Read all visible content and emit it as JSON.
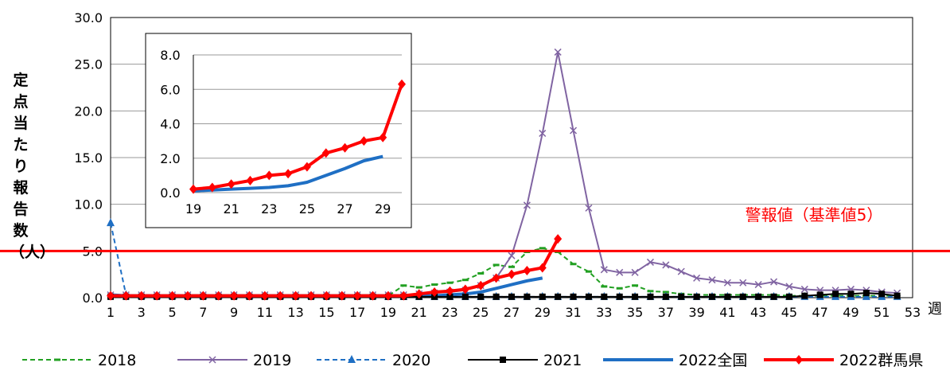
{
  "chart_data": {
    "type": "line",
    "ylabel": "定点当たり報告数（人）",
    "xunit": "週",
    "ylim": [
      0,
      30
    ],
    "xlim": [
      1,
      53
    ],
    "yticks": [
      "0.0",
      "5.0",
      "10.0",
      "15.0",
      "20.0",
      "25.0",
      "30.0"
    ],
    "xticks": [
      1,
      3,
      5,
      7,
      9,
      11,
      13,
      15,
      17,
      19,
      21,
      23,
      25,
      27,
      29,
      31,
      33,
      35,
      37,
      39,
      41,
      43,
      45,
      47,
      49,
      51,
      53
    ],
    "grid": true,
    "legend_position": "bottom",
    "alert_line": {
      "value": 5,
      "label": "警報値（基準値5）",
      "color": "#ff0000"
    },
    "series": [
      {
        "name": "2018",
        "color": "#22a022",
        "style": "dashed",
        "marker": "dash",
        "values": [
          0.2,
          0.2,
          0.2,
          0.2,
          0.2,
          0.2,
          0.2,
          0.2,
          0.2,
          0.2,
          0.2,
          0.2,
          0.2,
          0.2,
          0.2,
          0.2,
          0.2,
          0.2,
          0.2,
          1.3,
          1.1,
          1.4,
          1.6,
          1.9,
          2.6,
          3.5,
          3.3,
          4.9,
          5.3,
          4.9,
          3.6,
          2.8,
          1.2,
          1.0,
          1.3,
          0.7,
          0.6,
          0.4,
          0.3,
          0.3,
          0.3,
          0.3,
          0.3,
          0.3,
          0.2,
          0.2,
          0.2,
          0.2,
          0.2,
          0.2,
          0.2,
          0.2
        ]
      },
      {
        "name": "2019",
        "color": "#8064a2",
        "style": "solid",
        "marker": "x",
        "values": [
          0.3,
          0.3,
          0.3,
          0.3,
          0.3,
          0.3,
          0.3,
          0.3,
          0.3,
          0.3,
          0.3,
          0.3,
          0.3,
          0.3,
          0.3,
          0.3,
          0.3,
          0.3,
          0.3,
          0.3,
          0.4,
          0.5,
          0.6,
          0.8,
          1.3,
          2.1,
          4.5,
          9.9,
          17.6,
          26.3,
          17.9,
          9.6,
          3.0,
          2.7,
          2.7,
          3.8,
          3.5,
          2.8,
          2.1,
          1.9,
          1.6,
          1.6,
          1.4,
          1.7,
          1.2,
          0.9,
          0.8,
          0.8,
          0.9,
          0.8,
          0.6,
          0.5
        ]
      },
      {
        "name": "2020",
        "color": "#1f6fc4",
        "style": "dashed",
        "marker": "triangle",
        "values": [
          8.0,
          0.3,
          0.2,
          0.2,
          0.2,
          0.2,
          0.2,
          0.2,
          0.2,
          0.2,
          0.2,
          0.2,
          0.2,
          0.2,
          0.2,
          0.2,
          0.2,
          0.2,
          0.1,
          0.1,
          0.1,
          0.1,
          0.1,
          0.1,
          0.1,
          0.1,
          0.1,
          0.1,
          0.1,
          0.1,
          0.1,
          0.1,
          0.1,
          0.1,
          0.1,
          0.1,
          0.1,
          0.1,
          0.1,
          0.1,
          0.1,
          0.1,
          0.1,
          0.1,
          0.1,
          0.1,
          0.1,
          0.1,
          0.1,
          0.1,
          0.1,
          0.1
        ]
      },
      {
        "name": "2021",
        "color": "#000000",
        "style": "solid",
        "marker": "square",
        "values": [
          0.1,
          0.1,
          0.1,
          0.1,
          0.1,
          0.1,
          0.1,
          0.1,
          0.1,
          0.1,
          0.1,
          0.1,
          0.1,
          0.1,
          0.1,
          0.1,
          0.1,
          0.1,
          0.1,
          0.1,
          0.1,
          0.1,
          0.1,
          0.1,
          0.1,
          0.1,
          0.1,
          0.1,
          0.1,
          0.1,
          0.1,
          0.1,
          0.1,
          0.1,
          0.1,
          0.1,
          0.1,
          0.1,
          0.1,
          0.1,
          0.1,
          0.1,
          0.1,
          0.1,
          0.1,
          0.2,
          0.3,
          0.4,
          0.4,
          0.5,
          0.4,
          0.2
        ]
      },
      {
        "name": "2022全国",
        "color": "#1f6fc4",
        "style": "solid-thick",
        "marker": "none",
        "values": [
          0.3,
          0.2,
          0.2,
          0.2,
          0.2,
          0.2,
          0.2,
          0.2,
          0.2,
          0.2,
          0.2,
          0.2,
          0.2,
          0.2,
          0.2,
          0.2,
          0.2,
          0.2,
          0.2,
          0.2,
          0.2,
          0.2,
          0.3,
          0.4,
          0.6,
          1.0,
          1.4,
          1.8,
          2.1
        ]
      },
      {
        "name": "2022群馬県",
        "color": "#ff0000",
        "style": "solid-thick",
        "marker": "diamond",
        "values": [
          0.2,
          0.2,
          0.2,
          0.2,
          0.2,
          0.2,
          0.2,
          0.2,
          0.2,
          0.2,
          0.2,
          0.2,
          0.2,
          0.2,
          0.2,
          0.2,
          0.2,
          0.2,
          0.2,
          0.2,
          0.4,
          0.6,
          0.7,
          0.9,
          1.3,
          2.1,
          2.5,
          2.9,
          3.2,
          6.3
        ]
      }
    ],
    "inset": {
      "ylim": [
        0,
        8
      ],
      "xlim": [
        19,
        30
      ],
      "yticks": [
        "0.0",
        "2.0",
        "4.0",
        "6.0",
        "8.0"
      ],
      "xticks": [
        19,
        21,
        23,
        25,
        27,
        29
      ],
      "series": [
        {
          "name": "2022全国",
          "x": [
            19,
            20,
            21,
            22,
            23,
            24,
            25,
            26,
            27,
            28,
            29
          ],
          "values": [
            0.1,
            0.15,
            0.2,
            0.25,
            0.3,
            0.4,
            0.6,
            1.0,
            1.4,
            1.85,
            2.1
          ]
        },
        {
          "name": "2022群馬県",
          "x": [
            19,
            20,
            21,
            22,
            23,
            24,
            25,
            26,
            27,
            28,
            29,
            30
          ],
          "values": [
            0.2,
            0.3,
            0.5,
            0.7,
            1.0,
            1.1,
            1.5,
            2.3,
            2.6,
            3.0,
            3.2,
            6.3
          ]
        }
      ]
    }
  }
}
